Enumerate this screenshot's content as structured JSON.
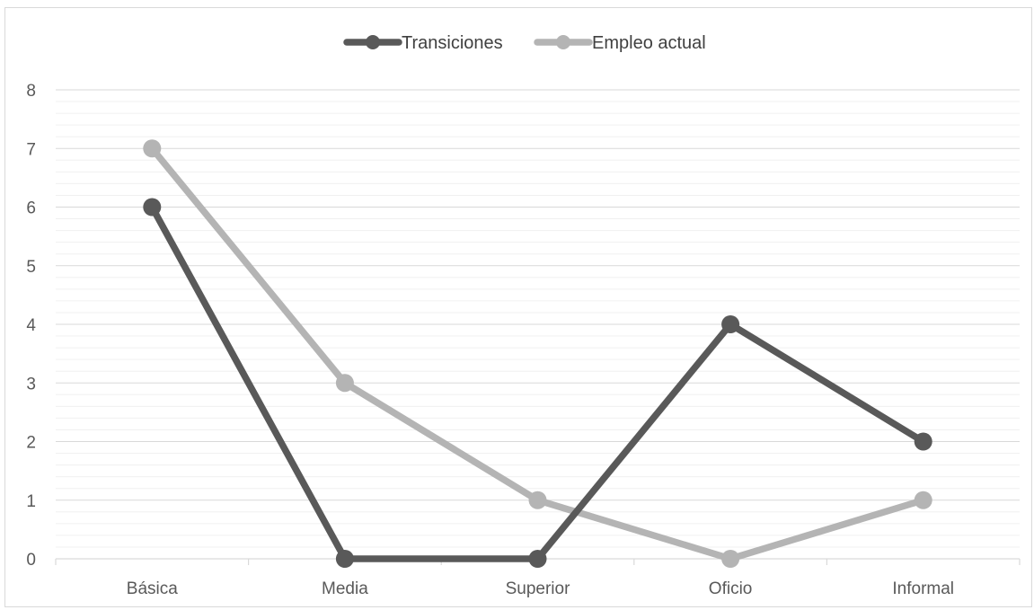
{
  "chart_data": {
    "type": "line",
    "categories": [
      "Básica",
      "Media",
      "Superior",
      "Oficio",
      "Informal"
    ],
    "series": [
      {
        "name": "Transiciones",
        "values": [
          6,
          0,
          0,
          4,
          2
        ],
        "color": "#595959"
      },
      {
        "name": "Empleo actual",
        "values": [
          7,
          3,
          1,
          0,
          1
        ],
        "color": "#b4b4b4"
      }
    ],
    "ylim": [
      0,
      8
    ],
    "yticks": [
      0,
      1,
      2,
      3,
      4,
      5,
      6,
      7,
      8
    ],
    "grid": true,
    "minor_grid": true,
    "legend_position": "top-center",
    "title": "",
    "xlabel": "",
    "ylabel": ""
  }
}
